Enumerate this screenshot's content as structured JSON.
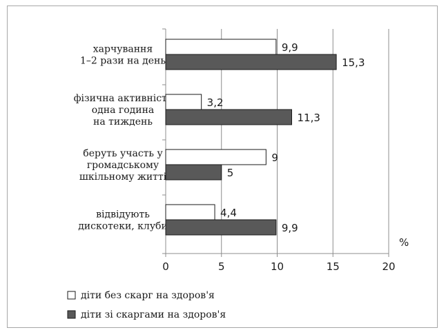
{
  "chart_data": {
    "type": "bar",
    "orientation": "horizontal",
    "categories": [
      [
        "харчування",
        "1–2 рази на день"
      ],
      [
        "фізична активність",
        "одна година",
        "на тиждень"
      ],
      [
        "беруть участь у",
        "громадському",
        "шкільному житті"
      ],
      [
        "відвідують",
        "дискотеки, клуби"
      ]
    ],
    "series": [
      {
        "name": "діти без скарг на здоров'я",
        "values": [
          9.9,
          3.2,
          9,
          4.4
        ],
        "labels": [
          "9,9",
          "3,2",
          "9",
          "4,4"
        ],
        "color": "#ffffff"
      },
      {
        "name": "діти зі скаргами на здоров'я",
        "values": [
          15.3,
          11.3,
          5,
          9.9
        ],
        "labels": [
          "15,3",
          "11,3",
          "5",
          "9,9"
        ],
        "color": "#595959"
      }
    ],
    "xlim": [
      0,
      20
    ],
    "xticks": [
      0,
      5,
      10,
      15,
      20
    ],
    "xtick_labels": [
      "0",
      "5",
      "10",
      "15",
      "20"
    ],
    "unit": "%",
    "grid": true,
    "legend_position": "bottom-left"
  }
}
